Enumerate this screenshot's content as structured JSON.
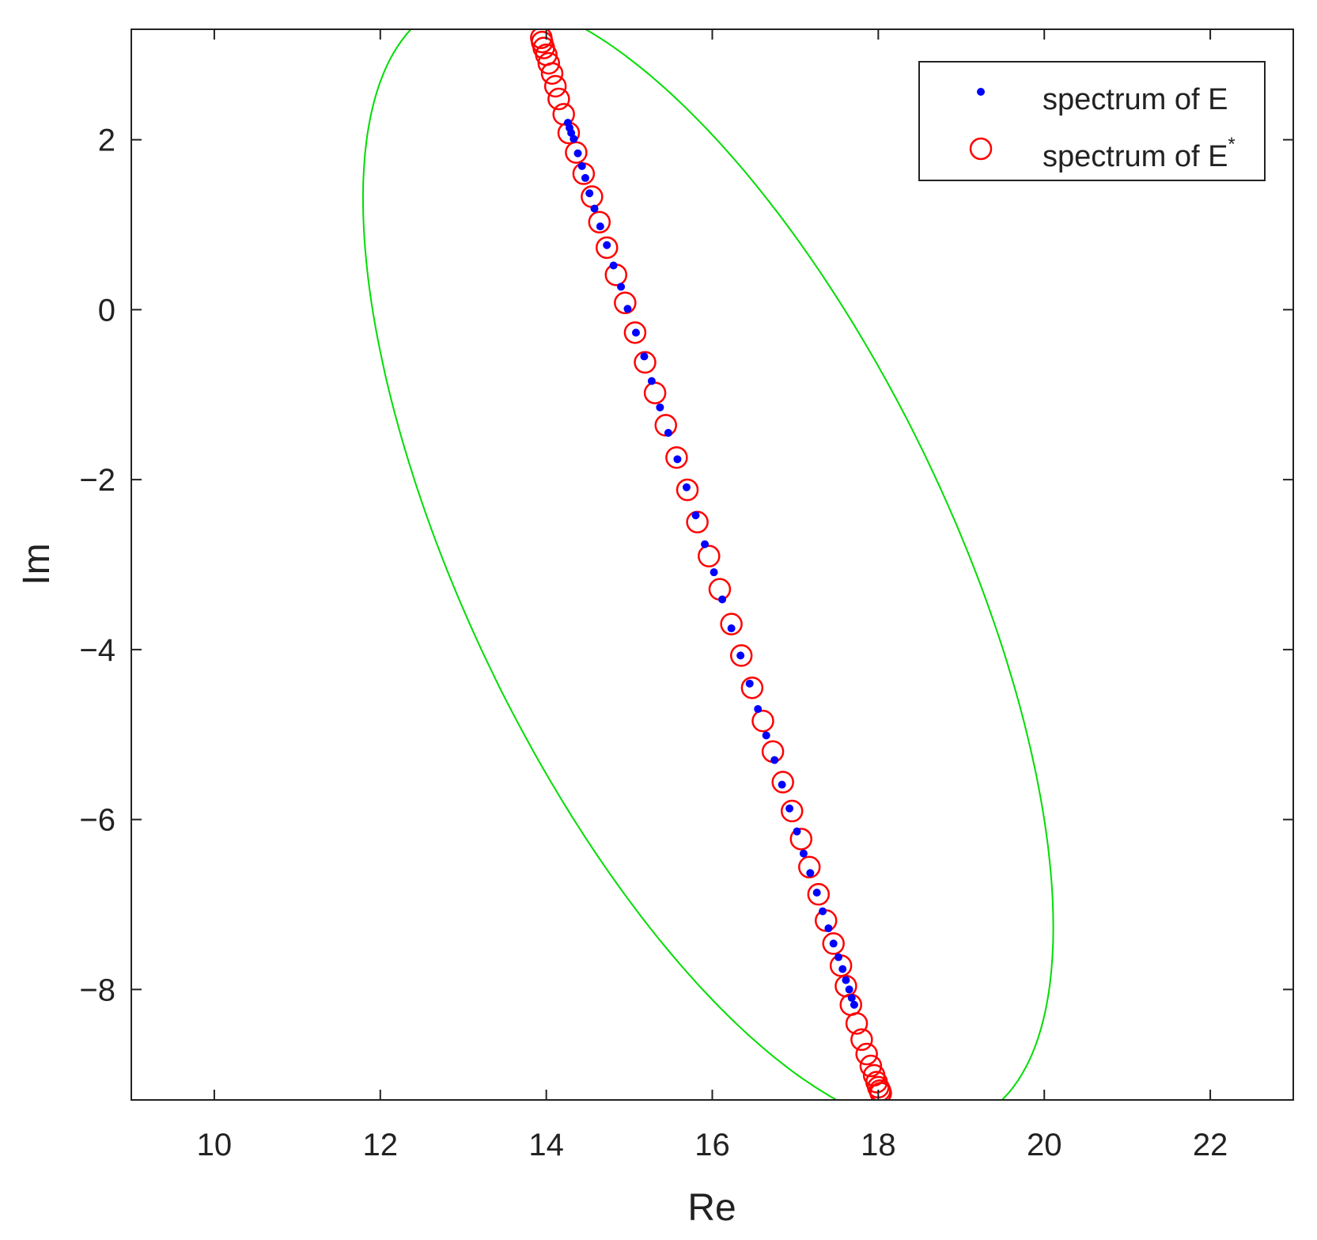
{
  "chart_data": {
    "type": "scatter",
    "xlabel": "Re",
    "ylabel": "Im",
    "xlim": [
      9,
      23
    ],
    "ylim": [
      -9.3,
      3.3
    ],
    "xticks": [
      10,
      12,
      14,
      16,
      18,
      20,
      22
    ],
    "yticks": [
      2,
      0,
      -2,
      -4,
      -6,
      -8
    ],
    "xtick_labels": [
      "10",
      "12",
      "14",
      "16",
      "18",
      "20",
      "22"
    ],
    "ytick_labels": [
      "2",
      "0",
      "−2",
      "−4",
      "−6",
      "−8"
    ],
    "grid": false,
    "legend_position": "top-right",
    "colors": {
      "spectrum_E": "#0000ff",
      "spectrum_E_star": "#ff0000",
      "ellipse": "#00dd00",
      "axes": "#222222"
    },
    "legend": {
      "entries": [
        {
          "text": "spectrum of E",
          "marker": "dot"
        },
        {
          "text": "spectrum of E",
          "superscript": "*",
          "marker": "circle"
        }
      ]
    },
    "ellipse": {
      "center": [
        15.95,
        -2.98
      ],
      "points": [
        [
          14.62,
          3.27
        ],
        [
          19.9,
          -5.3
        ],
        [
          17.45,
          -9.22
        ],
        [
          12.08,
          -0.7
        ]
      ]
    },
    "series": [
      {
        "marker": "dot",
        "points": [
          [
            14.26,
            2.2
          ],
          [
            14.28,
            2.14
          ],
          [
            14.3,
            2.08
          ],
          [
            14.33,
            2.01
          ],
          [
            14.38,
            1.84
          ],
          [
            14.43,
            1.69
          ],
          [
            14.47,
            1.55
          ],
          [
            14.52,
            1.37
          ],
          [
            14.58,
            1.19
          ],
          [
            14.65,
            0.98
          ],
          [
            14.73,
            0.76
          ],
          [
            14.81,
            0.52
          ],
          [
            14.9,
            0.27
          ],
          [
            14.98,
            0.01
          ],
          [
            15.08,
            -0.27
          ],
          [
            15.18,
            -0.55
          ],
          [
            15.27,
            -0.84
          ],
          [
            15.37,
            -1.15
          ],
          [
            15.47,
            -1.45
          ],
          [
            15.58,
            -1.76
          ],
          [
            15.69,
            -2.09
          ],
          [
            15.8,
            -2.42
          ],
          [
            15.91,
            -2.76
          ],
          [
            16.02,
            -3.09
          ],
          [
            16.12,
            -3.41
          ],
          [
            16.23,
            -3.75
          ],
          [
            16.34,
            -4.07
          ],
          [
            16.45,
            -4.4
          ],
          [
            16.55,
            -4.7
          ],
          [
            16.65,
            -5.01
          ],
          [
            16.75,
            -5.3
          ],
          [
            16.84,
            -5.59
          ],
          [
            16.93,
            -5.87
          ],
          [
            17.02,
            -6.14
          ],
          [
            17.1,
            -6.4
          ],
          [
            17.18,
            -6.63
          ],
          [
            17.26,
            -6.86
          ],
          [
            17.33,
            -7.08
          ],
          [
            17.4,
            -7.28
          ],
          [
            17.46,
            -7.46
          ],
          [
            17.52,
            -7.62
          ],
          [
            17.57,
            -7.76
          ],
          [
            17.61,
            -7.89
          ],
          [
            17.65,
            -8.0
          ],
          [
            17.68,
            -8.1
          ],
          [
            17.71,
            -8.18
          ]
        ]
      },
      {
        "marker": "circle",
        "points": [
          [
            13.94,
            3.2
          ],
          [
            13.95,
            3.15
          ],
          [
            13.97,
            3.08
          ],
          [
            14.0,
            3.0
          ],
          [
            14.03,
            2.9
          ],
          [
            14.07,
            2.78
          ],
          [
            14.11,
            2.63
          ],
          [
            14.15,
            2.48
          ],
          [
            14.21,
            2.3
          ],
          [
            14.27,
            2.08
          ],
          [
            14.36,
            1.85
          ],
          [
            14.45,
            1.6
          ],
          [
            14.55,
            1.33
          ],
          [
            14.64,
            1.03
          ],
          [
            14.73,
            0.73
          ],
          [
            14.84,
            0.41
          ],
          [
            14.95,
            0.08
          ],
          [
            15.07,
            -0.27
          ],
          [
            15.19,
            -0.62
          ],
          [
            15.31,
            -0.98
          ],
          [
            15.44,
            -1.36
          ],
          [
            15.57,
            -1.74
          ],
          [
            15.7,
            -2.12
          ],
          [
            15.82,
            -2.5
          ],
          [
            15.96,
            -2.9
          ],
          [
            16.09,
            -3.29
          ],
          [
            16.23,
            -3.7
          ],
          [
            16.35,
            -4.07
          ],
          [
            16.48,
            -4.45
          ],
          [
            16.61,
            -4.84
          ],
          [
            16.73,
            -5.2
          ],
          [
            16.85,
            -5.56
          ],
          [
            16.96,
            -5.9
          ],
          [
            17.07,
            -6.23
          ],
          [
            17.17,
            -6.56
          ],
          [
            17.28,
            -6.88
          ],
          [
            17.37,
            -7.19
          ],
          [
            17.46,
            -7.46
          ],
          [
            17.55,
            -7.72
          ],
          [
            17.61,
            -7.96
          ],
          [
            17.67,
            -8.18
          ],
          [
            17.74,
            -8.4
          ],
          [
            17.8,
            -8.59
          ],
          [
            17.86,
            -8.76
          ],
          [
            17.91,
            -8.9
          ],
          [
            17.95,
            -9.01
          ],
          [
            17.98,
            -9.09
          ],
          [
            18.0,
            -9.15
          ],
          [
            18.02,
            -9.19
          ],
          [
            18.03,
            -9.22
          ]
        ]
      }
    ]
  }
}
